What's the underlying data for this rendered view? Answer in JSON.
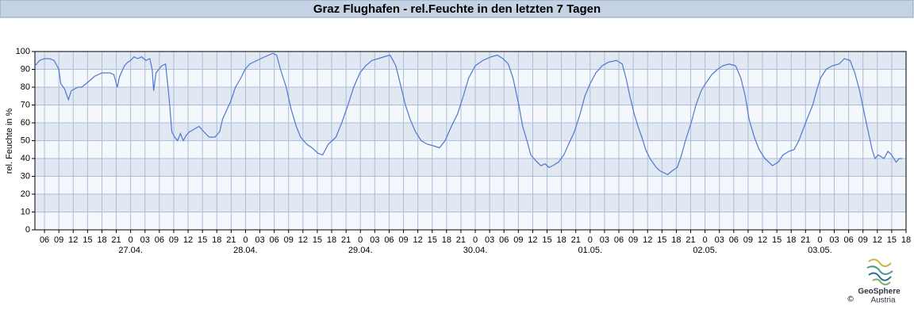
{
  "chart_data": {
    "type": "line",
    "title": "Graz Flughafen - rel.Feuchte in den letzten 7 Tagen",
    "y_label": "rel. Feuchte in %",
    "color": "#4f77d1",
    "grid": true,
    "ylim": [
      0,
      100
    ],
    "yticks": [
      0,
      10,
      20,
      30,
      40,
      50,
      60,
      70,
      80,
      90,
      100
    ],
    "xlim": [
      -20,
      162
    ],
    "xticks": [
      {
        "value": -18,
        "label": "06"
      },
      {
        "value": -15,
        "label": "09"
      },
      {
        "value": -12,
        "label": "12"
      },
      {
        "value": -9,
        "label": "15"
      },
      {
        "value": -6,
        "label": "18"
      },
      {
        "value": -3,
        "label": "21"
      },
      {
        "value": 0,
        "label": "0"
      },
      {
        "value": 3,
        "label": "03"
      },
      {
        "value": 6,
        "label": "06"
      },
      {
        "value": 9,
        "label": "09"
      },
      {
        "value": 12,
        "label": "12"
      },
      {
        "value": 15,
        "label": "15"
      },
      {
        "value": 18,
        "label": "18"
      },
      {
        "value": 21,
        "label": "21"
      },
      {
        "value": 24,
        "label": "0"
      },
      {
        "value": 27,
        "label": "03"
      },
      {
        "value": 30,
        "label": "06"
      },
      {
        "value": 33,
        "label": "09"
      },
      {
        "value": 36,
        "label": "12"
      },
      {
        "value": 39,
        "label": "15"
      },
      {
        "value": 42,
        "label": "18"
      },
      {
        "value": 45,
        "label": "21"
      },
      {
        "value": 48,
        "label": "0"
      },
      {
        "value": 51,
        "label": "03"
      },
      {
        "value": 54,
        "label": "06"
      },
      {
        "value": 57,
        "label": "09"
      },
      {
        "value": 60,
        "label": "12"
      },
      {
        "value": 63,
        "label": "15"
      },
      {
        "value": 66,
        "label": "18"
      },
      {
        "value": 69,
        "label": "21"
      },
      {
        "value": 72,
        "label": "0"
      },
      {
        "value": 75,
        "label": "03"
      },
      {
        "value": 78,
        "label": "06"
      },
      {
        "value": 81,
        "label": "09"
      },
      {
        "value": 84,
        "label": "12"
      },
      {
        "value": 87,
        "label": "15"
      },
      {
        "value": 90,
        "label": "18"
      },
      {
        "value": 93,
        "label": "21"
      },
      {
        "value": 96,
        "label": "0"
      },
      {
        "value": 99,
        "label": "03"
      },
      {
        "value": 102,
        "label": "06"
      },
      {
        "value": 105,
        "label": "09"
      },
      {
        "value": 108,
        "label": "12"
      },
      {
        "value": 111,
        "label": "15"
      },
      {
        "value": 114,
        "label": "18"
      },
      {
        "value": 117,
        "label": "21"
      },
      {
        "value": 120,
        "label": "0"
      },
      {
        "value": 123,
        "label": "03"
      },
      {
        "value": 126,
        "label": "06"
      },
      {
        "value": 129,
        "label": "09"
      },
      {
        "value": 132,
        "label": "12"
      },
      {
        "value": 135,
        "label": "15"
      },
      {
        "value": 138,
        "label": "18"
      },
      {
        "value": 141,
        "label": "21"
      },
      {
        "value": 144,
        "label": "0"
      },
      {
        "value": 147,
        "label": "03"
      },
      {
        "value": 150,
        "label": "06"
      },
      {
        "value": 153,
        "label": "09"
      },
      {
        "value": 156,
        "label": "12"
      },
      {
        "value": 159,
        "label": "15"
      },
      {
        "value": 162,
        "label": "18"
      }
    ],
    "day_labels": [
      {
        "value": 0,
        "label": "27.04."
      },
      {
        "value": 24,
        "label": "28.04."
      },
      {
        "value": 48,
        "label": "29.04."
      },
      {
        "value": 72,
        "label": "30.04."
      },
      {
        "value": 96,
        "label": "01.05."
      },
      {
        "value": 120,
        "label": "02.05."
      },
      {
        "value": 144,
        "label": "03.05."
      }
    ],
    "x": [
      -20,
      -19,
      -18,
      -17,
      -16,
      -15,
      -14.6,
      -13.8,
      -13,
      -12.4,
      -11,
      -10.2,
      -9.3,
      -8.4,
      -7.6,
      -6.8,
      -6,
      -5.1,
      -4.3,
      -3.5,
      -2.8,
      -2.3,
      -1.3,
      -0.6,
      0,
      0.7,
      1.5,
      2.3,
      3.2,
      4,
      4.5,
      4.8,
      5.3,
      6.5,
      7.3,
      8,
      8.6,
      9.2,
      9.8,
      10.4,
      11,
      11.6,
      12.3,
      13,
      13.6,
      14.3,
      15.3,
      16.4,
      17.6,
      18.6,
      19.2,
      20.2,
      20.9,
      21.9,
      23,
      23.9,
      24.9,
      26.4,
      28,
      29.7,
      30.5,
      31.3,
      32.5,
      33.5,
      34.6,
      35.5,
      36.8,
      37.9,
      39.1,
      40.1,
      41.3,
      42.9,
      44.1,
      45.4,
      46.6,
      47.9,
      49.1,
      50.4,
      51.7,
      52.9,
      54.2,
      55.4,
      56.5,
      57.4,
      58.4,
      59.5,
      60.7,
      62,
      63.4,
      64.5,
      65.7,
      67,
      68.3,
      69.5,
      70.6,
      72,
      73.6,
      75.3,
      76.6,
      77.8,
      78.9,
      79.9,
      81.1,
      81.9,
      82.8,
      83.6,
      84.9,
      85.7,
      86.6,
      87.4,
      88.2,
      89.4,
      90.5,
      91.5,
      92.7,
      93.9,
      94.9,
      96,
      97.2,
      98.5,
      99.8,
      101.5,
      102.7,
      103.5,
      104.3,
      105.2,
      106,
      106.8,
      107.6,
      108.5,
      109.8,
      110.6,
      111.4,
      112.2,
      113.1,
      114.2,
      115.1,
      115.9,
      117.1,
      118.1,
      119.2,
      120.1,
      121.4,
      122.6,
      123.7,
      125,
      126.4,
      127.5,
      128.4,
      129.2,
      130.3,
      131.3,
      132.5,
      133.3,
      134.1,
      135.3,
      136.3,
      137.5,
      138.6,
      139.6,
      140.3,
      141.3,
      142.5,
      143.3,
      144.1,
      145.3,
      146.6,
      148,
      149.1,
      150.3,
      151.3,
      152.3,
      153.3,
      154.1,
      154.9,
      155.5,
      156.2,
      157.4,
      158.2,
      159,
      159.9,
      160.6,
      161.2
    ],
    "values": [
      92,
      95,
      96,
      96,
      95,
      90,
      82,
      79,
      73,
      78,
      80,
      80,
      82,
      84,
      86,
      87,
      88,
      88,
      88,
      87,
      80,
      86,
      92,
      94,
      95,
      97,
      96,
      97,
      95,
      96,
      90,
      78,
      88,
      92,
      93,
      75,
      55,
      52,
      50,
      54,
      50,
      53,
      55,
      56,
      57,
      58,
      55,
      52,
      52,
      55,
      62,
      68,
      72,
      80,
      85,
      90,
      93,
      95,
      97,
      99,
      98,
      90,
      80,
      68,
      58,
      52,
      48,
      46,
      43,
      42,
      48,
      52,
      60,
      70,
      80,
      88,
      92,
      95,
      96,
      97,
      98,
      92,
      80,
      70,
      62,
      55,
      50,
      48,
      47,
      46,
      50,
      58,
      65,
      75,
      85,
      92,
      95,
      97,
      98,
      96,
      93,
      85,
      70,
      58,
      50,
      42,
      38,
      36,
      37,
      35,
      36,
      38,
      42,
      48,
      55,
      65,
      75,
      82,
      88,
      92,
      94,
      95,
      93,
      85,
      75,
      65,
      58,
      52,
      45,
      40,
      35,
      33,
      32,
      31,
      33,
      35,
      42,
      50,
      60,
      70,
      78,
      82,
      87,
      90,
      92,
      93,
      92,
      85,
      75,
      62,
      52,
      45,
      40,
      38,
      36,
      38,
      42,
      44,
      45,
      50,
      55,
      62,
      70,
      78,
      85,
      90,
      92,
      93,
      96,
      95,
      88,
      78,
      65,
      55,
      45,
      40,
      42,
      40,
      44,
      42,
      38,
      40,
      40
    ]
  },
  "logo": {
    "name": "GeoSphere",
    "country": "Austria",
    "copyright": "©"
  }
}
